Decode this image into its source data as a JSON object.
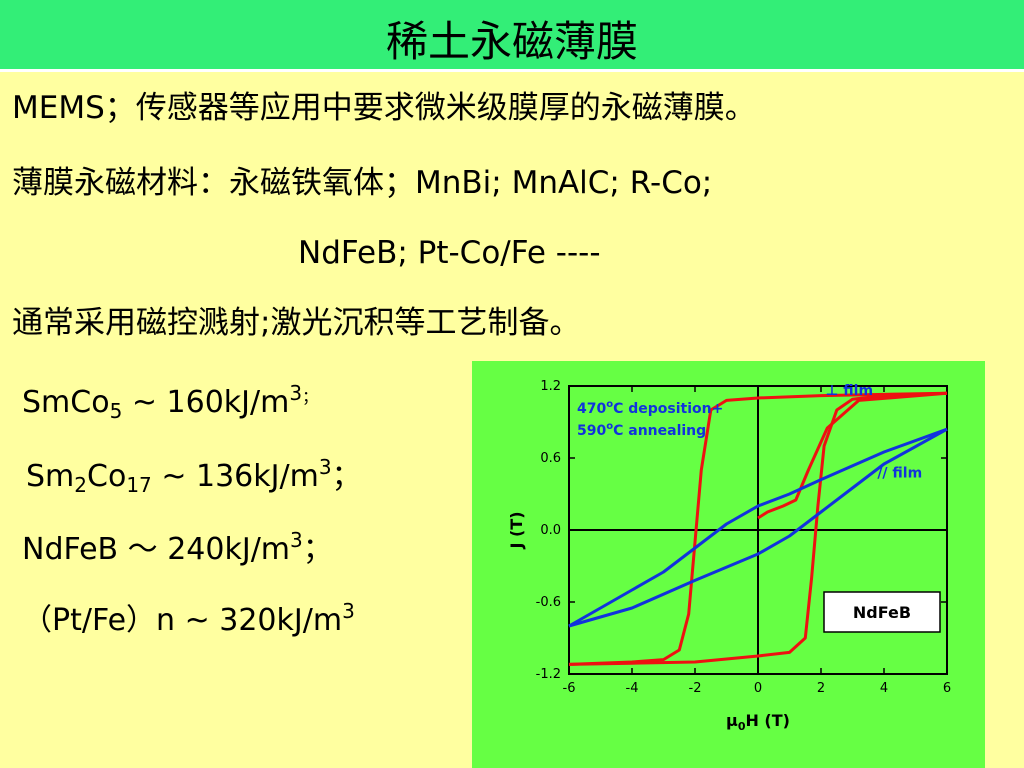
{
  "title": "稀土永磁薄膜",
  "lines": {
    "l1": "MEMS；传感器等应用中要求微米级膜厚的永磁薄膜。",
    "l2": "薄膜永磁材料：永磁铁氧体；MnBi; MnAlC; R-Co;",
    "l3": "NdFeB; Pt-Co/Fe  ----",
    "l4": "通常采用磁控溅射;激光沉积等工艺制备。"
  },
  "magnets": {
    "m1": {
      "a": "SmCo",
      "sub": "5",
      "b": " ~  160kJ/m",
      "sup": "3",
      "c": "；"
    },
    "m2": {
      "a": "Sm",
      "sub1": "2",
      "b": "Co",
      "sub2": "17",
      "c": " ~ 136kJ/m",
      "sup": "3",
      "d": "；"
    },
    "m3": {
      "a": "NdFeB ～ 240kJ/m",
      "sup": "3",
      "b": "；"
    },
    "m4": {
      "a": "（Pt/Fe）n ~ 320kJ/m",
      "sup": "3"
    }
  },
  "chart_data": {
    "type": "line",
    "xlabel": "μ0H (T)",
    "ylabel": "J (T)",
    "xlim": [
      -6,
      6
    ],
    "ylim": [
      -1.2,
      1.2
    ],
    "xticks": [
      "-6",
      "-4",
      "-2",
      "0",
      "2",
      "4",
      "6"
    ],
    "yticks": [
      "1.2",
      "0.6",
      "0.0",
      "-0.6",
      "-1.2"
    ],
    "annotation": "470°C deposition+\n590°C annealing",
    "sample_label": "NdFeB",
    "series": [
      {
        "name": "⊥ film",
        "color": "#ee1111",
        "descending": [
          [
            6,
            1.14
          ],
          [
            4,
            1.13
          ],
          [
            2,
            1.12
          ],
          [
            0,
            1.1
          ],
          [
            -1,
            1.08
          ],
          [
            -1.5,
            1.0
          ],
          [
            -1.8,
            0.5
          ],
          [
            -2,
            -0.1
          ],
          [
            -2.2,
            -0.7
          ],
          [
            -2.5,
            -1.0
          ],
          [
            -3,
            -1.08
          ],
          [
            -4,
            -1.1
          ],
          [
            -6,
            -1.12
          ]
        ],
        "ascending": [
          [
            -6,
            -1.12
          ],
          [
            -4,
            -1.11
          ],
          [
            -2,
            -1.1
          ],
          [
            0,
            -1.05
          ],
          [
            1,
            -1.02
          ],
          [
            1.5,
            -0.9
          ],
          [
            1.7,
            -0.4
          ],
          [
            1.9,
            0.2
          ],
          [
            2.1,
            0.7
          ],
          [
            2.5,
            1.0
          ],
          [
            3,
            1.09
          ],
          [
            4,
            1.12
          ],
          [
            6,
            1.14
          ]
        ],
        "minor_loop": [
          [
            0,
            0.1
          ],
          [
            0.3,
            0.15
          ],
          [
            0.8,
            0.2
          ],
          [
            1.2,
            0.25
          ],
          [
            1.6,
            0.5
          ],
          [
            2.2,
            0.85
          ],
          [
            3.2,
            1.08
          ],
          [
            6,
            1.14
          ]
        ]
      },
      {
        "name": "// film",
        "color": "#1133dd",
        "descending": [
          [
            6,
            0.84
          ],
          [
            4,
            0.65
          ],
          [
            2,
            0.42
          ],
          [
            1,
            0.3
          ],
          [
            0,
            0.2
          ],
          [
            -1,
            0.05
          ],
          [
            -2,
            -0.15
          ],
          [
            -3,
            -0.35
          ],
          [
            -4,
            -0.5
          ],
          [
            -6,
            -0.8
          ]
        ],
        "ascending": [
          [
            -6,
            -0.8
          ],
          [
            -4,
            -0.65
          ],
          [
            -2,
            -0.42
          ],
          [
            0,
            -0.2
          ],
          [
            1,
            -0.05
          ],
          [
            2,
            0.15
          ],
          [
            3,
            0.35
          ],
          [
            4,
            0.55
          ],
          [
            6,
            0.84
          ]
        ]
      }
    ]
  }
}
